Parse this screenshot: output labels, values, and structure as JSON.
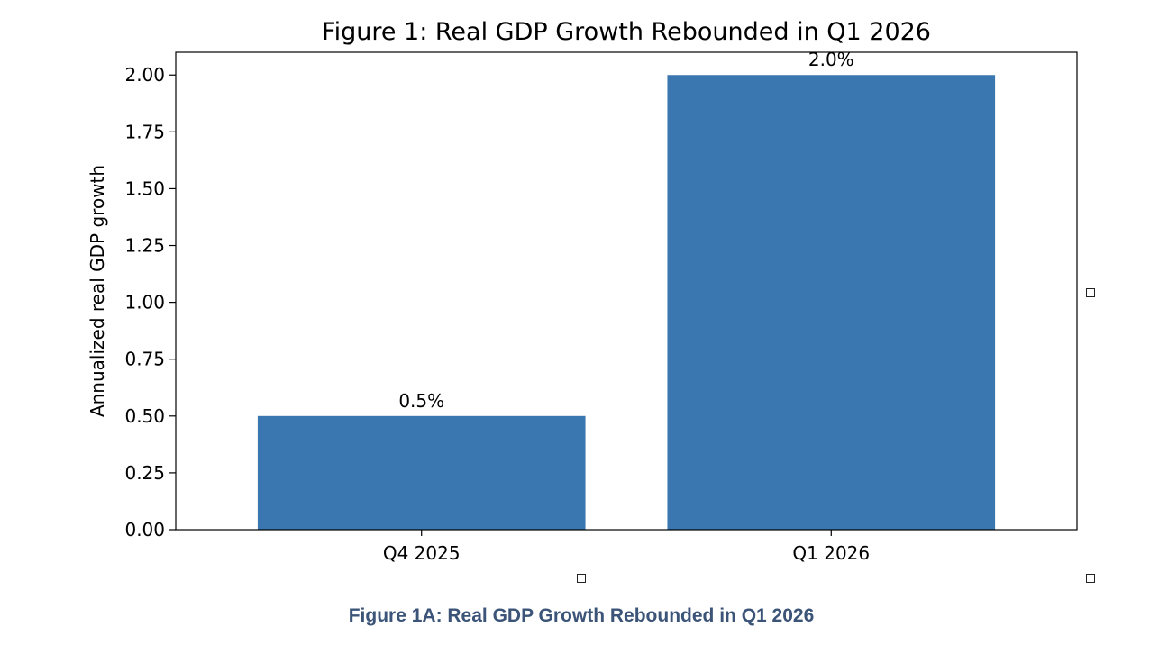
{
  "chart_data": {
    "type": "bar",
    "title": "Figure 1: Real GDP Growth Rebounded in Q1 2026",
    "xlabel": "",
    "ylabel": "Annualized real GDP growth",
    "categories": [
      "Q4 2025",
      "Q1 2026"
    ],
    "values": [
      0.5,
      2.0
    ],
    "value_labels": [
      "0.5%",
      "2.0%"
    ],
    "ylim": [
      0,
      2.1
    ],
    "yticks": [
      0.0,
      0.25,
      0.5,
      0.75,
      1.0,
      1.25,
      1.5,
      1.75,
      2.0
    ],
    "ytick_labels": [
      "0.00",
      "0.25",
      "0.50",
      "0.75",
      "1.00",
      "1.25",
      "1.50",
      "1.75",
      "2.00"
    ],
    "bar_color": "#3a76af",
    "grid": false,
    "legend": "none"
  },
  "caption": "Figure 1A: Real GDP Growth Rebounded in Q1 2026",
  "caption_color": "#3b5478",
  "selection_handles": [
    "resize-handle-right-middle",
    "resize-handle-bottom-middle",
    "resize-handle-bottom-right"
  ]
}
